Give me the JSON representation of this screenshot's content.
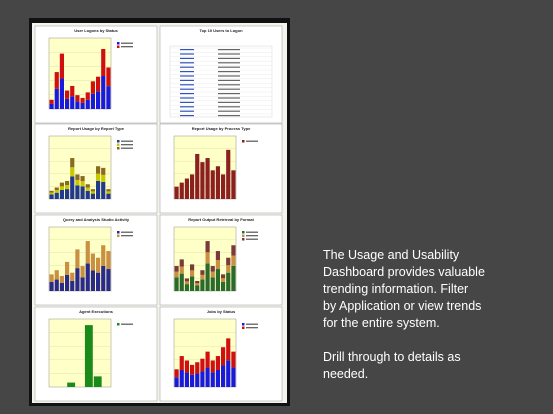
{
  "dashboard": {
    "panels": [
      {
        "title": "User Logons by Status"
      },
      {
        "title": "Top 10 Users to Logon"
      },
      {
        "title": "Report Usage by Report Type"
      },
      {
        "title": "Report Usage by Process Type"
      },
      {
        "title": "Query and Analysis Studio Activity"
      },
      {
        "title": "Report Output Retrieval by Format"
      },
      {
        "title": "Agent Executions"
      },
      {
        "title": "Jobs by Status"
      }
    ]
  },
  "text": {
    "paragraphs": [
      [
        "The Usage and Usability",
        "Dashboard provides valuable",
        "trending information. Filter",
        "by Application  or view trends",
        "for the entire system."
      ],
      [
        "Drill through to details as",
        "needed."
      ]
    ]
  }
}
